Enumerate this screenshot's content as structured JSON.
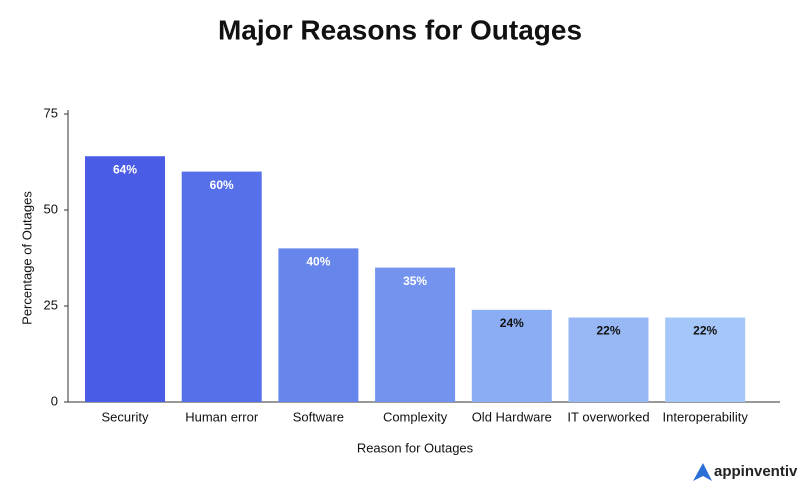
{
  "chart_data": {
    "type": "bar",
    "title": "Major Reasons for Outages",
    "x_label": "Reason for Outages",
    "y_label": "Percentage of Outages",
    "categories": [
      "Security",
      "Human error",
      "Software",
      "Complexity",
      "Old Hardware",
      "IT overworked",
      "Interoperability"
    ],
    "values": [
      64,
      60,
      40,
      35,
      24,
      22,
      22
    ],
    "value_labels": [
      "64%",
      "60%",
      "40%",
      "35%",
      "24%",
      "22%",
      "22%"
    ],
    "colors": [
      "#4a5be6",
      "#5570e8",
      "#6686ec",
      "#7393ee",
      "#8aadf3",
      "#97b8f5",
      "#a5c6f8"
    ],
    "ylim": [
      0,
      75
    ],
    "yticks": [
      0,
      25,
      50,
      75
    ],
    "grid": false
  },
  "logo": "appinventiv"
}
